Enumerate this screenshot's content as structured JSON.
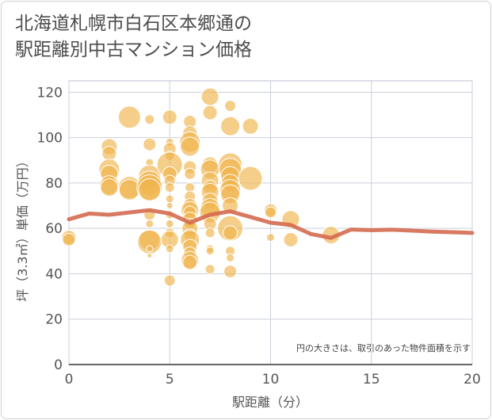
{
  "title": "北海道札幌市白石区本郷通の\n駅距離別中古マンション価格",
  "chart_data": {
    "type": "scatter",
    "xlabel": "駅距離（分）",
    "ylabel": "坪（3.3㎡）単価（万円）",
    "xlim": [
      0,
      20
    ],
    "ylim": [
      0,
      125
    ],
    "x_ticks": [
      0,
      5,
      10,
      15,
      20
    ],
    "y_ticks": [
      0,
      20,
      40,
      60,
      80,
      100,
      120
    ],
    "note": "円の大きさは、取引のあった物件面積を示す",
    "bubble_color": "#f0b44c",
    "line_color": "#d46a50",
    "points": [
      {
        "x": 0,
        "y": 56,
        "s": 9
      },
      {
        "x": 0,
        "y": 55,
        "s": 8
      },
      {
        "x": 2,
        "y": 96,
        "s": 10
      },
      {
        "x": 2,
        "y": 93,
        "s": 9
      },
      {
        "x": 2,
        "y": 86,
        "s": 13
      },
      {
        "x": 2,
        "y": 84,
        "s": 11
      },
      {
        "x": 2,
        "y": 79,
        "s": 12
      },
      {
        "x": 2,
        "y": 78,
        "s": 11
      },
      {
        "x": 3,
        "y": 109,
        "s": 14
      },
      {
        "x": 3,
        "y": 78,
        "s": 14
      },
      {
        "x": 3,
        "y": 77,
        "s": 13
      },
      {
        "x": 4,
        "y": 108,
        "s": 6
      },
      {
        "x": 4,
        "y": 97,
        "s": 8
      },
      {
        "x": 4,
        "y": 89,
        "s": 5
      },
      {
        "x": 4,
        "y": 83,
        "s": 14
      },
      {
        "x": 4,
        "y": 80,
        "s": 15
      },
      {
        "x": 4,
        "y": 78,
        "s": 16
      },
      {
        "x": 4,
        "y": 77,
        "s": 14
      },
      {
        "x": 4,
        "y": 66,
        "s": 7
      },
      {
        "x": 4,
        "y": 62,
        "s": 5
      },
      {
        "x": 4,
        "y": 55,
        "s": 13
      },
      {
        "x": 4,
        "y": 54,
        "s": 15
      },
      {
        "x": 4,
        "y": 51,
        "s": 4
      },
      {
        "x": 4,
        "y": 48,
        "s": 3
      },
      {
        "x": 5,
        "y": 109,
        "s": 9
      },
      {
        "x": 5,
        "y": 98,
        "s": 5
      },
      {
        "x": 5,
        "y": 95,
        "s": 8
      },
      {
        "x": 5,
        "y": 92,
        "s": 6
      },
      {
        "x": 5,
        "y": 88,
        "s": 16
      },
      {
        "x": 5,
        "y": 84,
        "s": 9
      },
      {
        "x": 5,
        "y": 81,
        "s": 7
      },
      {
        "x": 5,
        "y": 78,
        "s": 6
      },
      {
        "x": 5,
        "y": 73,
        "s": 5
      },
      {
        "x": 5,
        "y": 70,
        "s": 4
      },
      {
        "x": 5,
        "y": 66,
        "s": 5
      },
      {
        "x": 5,
        "y": 62,
        "s": 5
      },
      {
        "x": 5,
        "y": 58,
        "s": 6
      },
      {
        "x": 5,
        "y": 55,
        "s": 11
      },
      {
        "x": 5,
        "y": 51,
        "s": 5
      },
      {
        "x": 5,
        "y": 37,
        "s": 7
      },
      {
        "x": 6,
        "y": 107,
        "s": 8
      },
      {
        "x": 6,
        "y": 102,
        "s": 9
      },
      {
        "x": 6,
        "y": 98,
        "s": 13
      },
      {
        "x": 6,
        "y": 96,
        "s": 12
      },
      {
        "x": 6,
        "y": 87,
        "s": 8
      },
      {
        "x": 6,
        "y": 84,
        "s": 7
      },
      {
        "x": 6,
        "y": 78,
        "s": 6
      },
      {
        "x": 6,
        "y": 74,
        "s": 7
      },
      {
        "x": 6,
        "y": 70,
        "s": 9
      },
      {
        "x": 6,
        "y": 68,
        "s": 11
      },
      {
        "x": 6,
        "y": 67,
        "s": 8
      },
      {
        "x": 6,
        "y": 64,
        "s": 9
      },
      {
        "x": 6,
        "y": 62,
        "s": 7
      },
      {
        "x": 6,
        "y": 60,
        "s": 10
      },
      {
        "x": 6,
        "y": 57,
        "s": 8
      },
      {
        "x": 6,
        "y": 55,
        "s": 12
      },
      {
        "x": 6,
        "y": 52,
        "s": 9
      },
      {
        "x": 6,
        "y": 49,
        "s": 8
      },
      {
        "x": 6,
        "y": 46,
        "s": 11
      },
      {
        "x": 6,
        "y": 45,
        "s": 9
      },
      {
        "x": 7,
        "y": 118,
        "s": 11
      },
      {
        "x": 7,
        "y": 111,
        "s": 9
      },
      {
        "x": 7,
        "y": 88,
        "s": 10
      },
      {
        "x": 7,
        "y": 86,
        "s": 12
      },
      {
        "x": 7,
        "y": 81,
        "s": 11
      },
      {
        "x": 7,
        "y": 78,
        "s": 9
      },
      {
        "x": 7,
        "y": 76,
        "s": 11
      },
      {
        "x": 7,
        "y": 72,
        "s": 10
      },
      {
        "x": 7,
        "y": 69,
        "s": 12
      },
      {
        "x": 7,
        "y": 67,
        "s": 13
      },
      {
        "x": 7,
        "y": 62,
        "s": 8
      },
      {
        "x": 7,
        "y": 58,
        "s": 6
      },
      {
        "x": 7,
        "y": 51,
        "s": 5
      },
      {
        "x": 7,
        "y": 50,
        "s": 5
      },
      {
        "x": 7,
        "y": 42,
        "s": 6
      },
      {
        "x": 8,
        "y": 114,
        "s": 7
      },
      {
        "x": 8,
        "y": 105,
        "s": 12
      },
      {
        "x": 8,
        "y": 88,
        "s": 15
      },
      {
        "x": 8,
        "y": 86,
        "s": 14
      },
      {
        "x": 8,
        "y": 83,
        "s": 12
      },
      {
        "x": 8,
        "y": 80,
        "s": 11
      },
      {
        "x": 8,
        "y": 77,
        "s": 13
      },
      {
        "x": 8,
        "y": 75,
        "s": 12
      },
      {
        "x": 8,
        "y": 70,
        "s": 10
      },
      {
        "x": 8,
        "y": 60,
        "s": 16
      },
      {
        "x": 8,
        "y": 58,
        "s": 9
      },
      {
        "x": 8,
        "y": 50,
        "s": 6
      },
      {
        "x": 8,
        "y": 47,
        "s": 5
      },
      {
        "x": 8,
        "y": 41,
        "s": 8
      },
      {
        "x": 9,
        "y": 105,
        "s": 10
      },
      {
        "x": 9,
        "y": 82,
        "s": 15
      },
      {
        "x": 10,
        "y": 68,
        "s": 8
      },
      {
        "x": 10,
        "y": 67,
        "s": 7
      },
      {
        "x": 10,
        "y": 56,
        "s": 5
      },
      {
        "x": 11,
        "y": 64,
        "s": 11
      },
      {
        "x": 11,
        "y": 55,
        "s": 9
      },
      {
        "x": 13,
        "y": 57,
        "s": 11
      }
    ],
    "trend": {
      "x": [
        0,
        1,
        2,
        3,
        4,
        5,
        6,
        7,
        8,
        9,
        10,
        11,
        12,
        13,
        14,
        15,
        16,
        17,
        18,
        19,
        20
      ],
      "y": [
        64,
        66.5,
        66,
        67,
        68,
        66.5,
        62.5,
        66,
        67.5,
        65,
        62.5,
        61.5,
        57.5,
        55.8,
        59.5,
        59.2,
        59.4,
        59,
        58.6,
        58.3,
        58
      ]
    }
  }
}
